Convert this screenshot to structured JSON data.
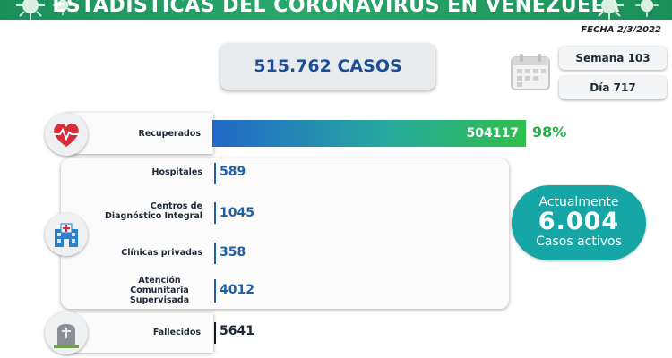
{
  "header": {
    "title": "ESTADÍSTICAS DEL CORONAVIRUS EN VENEZUELA",
    "fecha": "FECHA 2/3/2022"
  },
  "casos": "515.762 CASOS",
  "semana": "Semana 103",
  "dia": "Día 717",
  "recuperados": {
    "label": "Recuperados",
    "value": "504117",
    "percent": "98%"
  },
  "atencion": [
    {
      "label": "Hospitales",
      "value": "589"
    },
    {
      "label": "Centros de\nDiagnóstico Integral",
      "value": "1045"
    },
    {
      "label": "Clínicas privadas",
      "value": "358"
    },
    {
      "label": "Atención\nComunitaria\nSupervisada",
      "value": "4012"
    }
  ],
  "fallecidos": {
    "label": "Fallecidos",
    "value": "5641"
  },
  "activos": {
    "title": "Actualmente",
    "value": "6.004",
    "subtitle": "Casos activos"
  },
  "colors": {
    "header": "#1b8f5a",
    "casos_text": "#1f4e96",
    "values": "#1f5fa6",
    "percent": "#27b04a",
    "active_bg": "#17a6a6"
  },
  "icons": [
    "virus-icon",
    "calendar-icon",
    "heart-pulse-icon",
    "hospital-icon",
    "tombstone-icon"
  ]
}
